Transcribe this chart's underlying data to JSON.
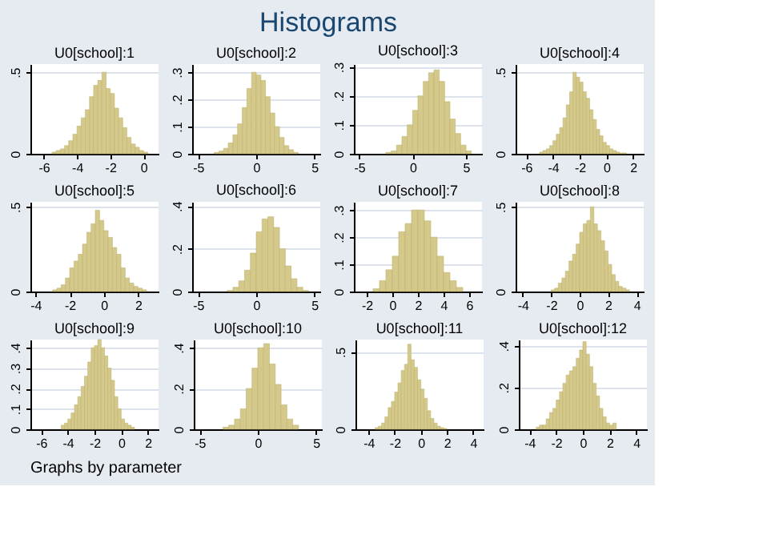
{
  "chart_data": [
    {
      "type": "other",
      "title": "Histograms",
      "annotations": [
        "Graphs by parameter"
      ]
    },
    {
      "type": "histogram",
      "title": "U0[school]:1",
      "color": "#d4c98a",
      "grid": "y",
      "xlim": [
        -6.8,
        0.9
      ],
      "xticks": [
        -6,
        -4,
        -2,
        0
      ],
      "ylim": [
        0,
        0.55
      ],
      "yticks": [
        0,
        {
          "value": 0.5,
          "label": ".5"
        }
      ],
      "bins": [
        -5.5,
        -5.25,
        -5,
        -4.75,
        -4.5,
        -4.25,
        -4,
        -3.75,
        -3.5,
        -3.25,
        -3,
        -2.75,
        -2.5,
        -2.25,
        -2,
        -1.75,
        -1.5,
        -1.25,
        -1,
        -0.75,
        -0.5,
        -0.25,
        0,
        0.25
      ],
      "values": [
        0.01,
        0.02,
        0.03,
        0.05,
        0.08,
        0.12,
        0.17,
        0.22,
        0.27,
        0.35,
        0.42,
        0.45,
        0.5,
        0.4,
        0.37,
        0.28,
        0.22,
        0.16,
        0.1,
        0.06,
        0.04,
        0.02,
        0.01
      ]
    },
    {
      "type": "histogram",
      "title": "U0[school]:2",
      "color": "#d4c98a",
      "grid": "y",
      "xlim": [
        -5.5,
        5.5
      ],
      "xticks": [
        -5,
        0,
        5
      ],
      "ylim": [
        0,
        0.33
      ],
      "yticks": [
        0,
        {
          "value": 0.1,
          "label": ".1"
        },
        {
          "value": 0.2,
          "label": ".2"
        },
        {
          "value": 0.3,
          "label": ".3"
        }
      ],
      "bins": [
        -3.6,
        -3.2,
        -2.8,
        -2.4,
        -2,
        -1.6,
        -1.2,
        -0.8,
        -0.4,
        0,
        0.4,
        0.8,
        1.2,
        1.6,
        2,
        2.4,
        2.8,
        3.2,
        3.6
      ],
      "values": [
        0.005,
        0.01,
        0.02,
        0.04,
        0.07,
        0.11,
        0.17,
        0.24,
        0.3,
        0.29,
        0.27,
        0.21,
        0.15,
        0.1,
        0.06,
        0.03,
        0.015,
        0.005
      ]
    },
    {
      "type": "histogram",
      "title": "U0[school]:3",
      "color": "#d4c98a",
      "grid": "y",
      "xlim": [
        -5.5,
        6.5
      ],
      "xticks": [
        -5,
        0,
        5
      ],
      "ylim": [
        0,
        0.31
      ],
      "yticks": [
        0,
        {
          "value": 0.1,
          "label": ".1"
        },
        {
          "value": 0.2,
          "label": ".2"
        },
        {
          "value": 0.3,
          "label": ".3"
        }
      ],
      "bins": [
        -2.5,
        -2,
        -1.5,
        -1,
        -0.5,
        0,
        0.5,
        1,
        1.5,
        2,
        2.5,
        3,
        3.5,
        4,
        4.5,
        5,
        5.5
      ],
      "values": [
        0.005,
        0.01,
        0.03,
        0.06,
        0.1,
        0.15,
        0.2,
        0.25,
        0.28,
        0.29,
        0.25,
        0.18,
        0.12,
        0.07,
        0.03,
        0.01
      ]
    },
    {
      "type": "histogram",
      "title": "U0[school]:4",
      "color": "#d4c98a",
      "grid": "y",
      "xlim": [
        -6.8,
        2.8
      ],
      "xticks": [
        -6,
        -4,
        -2,
        0,
        2
      ],
      "ylim": [
        0,
        0.55
      ],
      "yticks": [
        0,
        {
          "value": 0.5,
          "label": ".5"
        }
      ],
      "bins": [
        -5,
        -4.75,
        -4.5,
        -4.25,
        -4,
        -3.75,
        -3.5,
        -3.25,
        -3,
        -2.75,
        -2.5,
        -2.25,
        -2,
        -1.75,
        -1.5,
        -1.25,
        -1,
        -0.75,
        -0.5,
        -0.25,
        0,
        0.25,
        0.5,
        0.75,
        1,
        1.25,
        1.5
      ],
      "values": [
        0.01,
        0.02,
        0.03,
        0.05,
        0.08,
        0.12,
        0.16,
        0.22,
        0.3,
        0.38,
        0.5,
        0.47,
        0.44,
        0.38,
        0.34,
        0.27,
        0.21,
        0.15,
        0.11,
        0.07,
        0.05,
        0.03,
        0.02,
        0.01,
        0.005,
        0.005
      ]
    },
    {
      "type": "histogram",
      "title": "U0[school]:5",
      "color": "#d4c98a",
      "grid": "y",
      "xlim": [
        -4.3,
        3.2
      ],
      "xticks": [
        -4,
        -2,
        0,
        2
      ],
      "ylim": [
        0,
        0.53
      ],
      "yticks": [
        0,
        {
          "value": 0.5,
          "label": ".5"
        }
      ],
      "bins": [
        -3,
        -2.75,
        -2.5,
        -2.25,
        -2,
        -1.75,
        -1.5,
        -1.25,
        -1,
        -0.75,
        -0.5,
        -0.25,
        0,
        0.25,
        0.5,
        0.75,
        1,
        1.25,
        1.5,
        1.75,
        2,
        2.25,
        2.5
      ],
      "values": [
        0.01,
        0.02,
        0.04,
        0.08,
        0.14,
        0.18,
        0.22,
        0.28,
        0.35,
        0.4,
        0.48,
        0.42,
        0.36,
        0.32,
        0.26,
        0.22,
        0.14,
        0.08,
        0.05,
        0.03,
        0.02,
        0.01
      ]
    },
    {
      "type": "histogram",
      "title": "U0[school]:6",
      "color": "#d4c98a",
      "grid": "y",
      "xlim": [
        -5.5,
        5.5
      ],
      "xticks": [
        -5,
        0,
        5
      ],
      "ylim": [
        0,
        0.42
      ],
      "yticks": [
        0,
        {
          "value": 0.2,
          "label": ".2"
        },
        {
          "value": 0.4,
          "label": ".4"
        }
      ],
      "bins": [
        -2.5,
        -2,
        -1.5,
        -1,
        -0.5,
        0,
        0.5,
        1,
        1.5,
        2,
        2.5,
        3,
        3.5,
        4,
        4.5
      ],
      "values": [
        0.005,
        0.02,
        0.05,
        0.1,
        0.18,
        0.28,
        0.34,
        0.35,
        0.3,
        0.2,
        0.12,
        0.06,
        0.02,
        0.005
      ]
    },
    {
      "type": "histogram",
      "title": "U0[school]:7",
      "color": "#d4c98a",
      "grid": "y",
      "xlim": [
        -3,
        7
      ],
      "xticks": [
        -2,
        0,
        2,
        4,
        6
      ],
      "ylim": [
        0,
        0.33
      ],
      "yticks": [
        0,
        {
          "value": 0.1,
          "label": ".1"
        },
        {
          "value": 0.2,
          "label": ".2"
        },
        {
          "value": 0.3,
          "label": ".3"
        }
      ],
      "bins": [
        -1.5,
        -1,
        -0.5,
        0,
        0.5,
        1,
        1.5,
        2,
        2.5,
        3,
        3.5,
        4,
        4.5,
        5,
        5.5
      ],
      "values": [
        0.01,
        0.04,
        0.08,
        0.13,
        0.22,
        0.25,
        0.3,
        0.3,
        0.26,
        0.2,
        0.13,
        0.07,
        0.04,
        0.015
      ]
    },
    {
      "type": "histogram",
      "title": "U0[school]:8",
      "color": "#d4c98a",
      "grid": "y",
      "xlim": [
        -4.5,
        4.5
      ],
      "xticks": [
        -4,
        -2,
        0,
        2,
        4
      ],
      "ylim": [
        0,
        0.53
      ],
      "yticks": [
        0,
        {
          "value": 0.5,
          "label": ".5"
        }
      ],
      "bins": [
        -2,
        -1.75,
        -1.5,
        -1.25,
        -1,
        -0.75,
        -0.5,
        -0.25,
        0,
        0.25,
        0.5,
        0.75,
        1,
        1.25,
        1.5,
        1.75,
        2,
        2.25,
        2.5,
        2.75,
        3,
        3.25,
        3.5
      ],
      "values": [
        0.01,
        0.02,
        0.05,
        0.08,
        0.12,
        0.18,
        0.22,
        0.28,
        0.35,
        0.4,
        0.42,
        0.5,
        0.4,
        0.36,
        0.3,
        0.24,
        0.16,
        0.1,
        0.06,
        0.03,
        0.02,
        0.01
      ]
    },
    {
      "type": "histogram",
      "title": "U0[school]:9",
      "color": "#d4c98a",
      "grid": "y",
      "xlim": [
        -6.8,
        2.8
      ],
      "xticks": [
        -6,
        -4,
        -2,
        0,
        2
      ],
      "ylim": [
        0,
        0.44
      ],
      "yticks": [
        0,
        {
          "value": 0.1,
          "label": ".1"
        },
        {
          "value": 0.2,
          "label": ".2"
        },
        {
          "value": 0.3,
          "label": ".3"
        },
        {
          "value": 0.4,
          "label": ".4"
        }
      ],
      "bins": [
        -4.5,
        -4.25,
        -4,
        -3.75,
        -3.5,
        -3.25,
        -3,
        -2.75,
        -2.5,
        -2.25,
        -2,
        -1.75,
        -1.5,
        -1.25,
        -1,
        -0.75,
        -0.5,
        -0.25,
        0,
        0.25,
        0.5,
        0.75,
        1
      ],
      "values": [
        0.02,
        0.03,
        0.05,
        0.08,
        0.12,
        0.16,
        0.21,
        0.26,
        0.33,
        0.4,
        0.41,
        0.44,
        0.4,
        0.36,
        0.3,
        0.24,
        0.16,
        0.1,
        0.05,
        0.03,
        0.02,
        0.01
      ]
    },
    {
      "type": "histogram",
      "title": "U0[school]:10",
      "color": "#d4c98a",
      "grid": "y",
      "xlim": [
        -5.5,
        5.5
      ],
      "xticks": [
        -5,
        0,
        5
      ],
      "ylim": [
        0,
        0.44
      ],
      "yticks": [
        0,
        {
          "value": 0.2,
          "label": ".2"
        },
        {
          "value": 0.4,
          "label": ".4"
        }
      ],
      "bins": [
        -3,
        -2.5,
        -2,
        -1.5,
        -1,
        -0.5,
        0,
        0.5,
        1,
        1.5,
        2,
        2.5,
        3,
        3.5
      ],
      "values": [
        0.01,
        0.02,
        0.05,
        0.1,
        0.2,
        0.3,
        0.4,
        0.42,
        0.32,
        0.22,
        0.12,
        0.05,
        0.02
      ]
    },
    {
      "type": "histogram",
      "title": "U0[school]:11",
      "color": "#d4c98a",
      "grid": "y",
      "xlim": [
        -5,
        4.8
      ],
      "xticks": [
        -4,
        -2,
        0,
        2,
        4
      ],
      "ylim": [
        0,
        0.58
      ],
      "yticks": [
        0,
        {
          "value": 0.5,
          "label": ".5"
        }
      ],
      "bins": [
        -3.5,
        -3.25,
        -3,
        -2.75,
        -2.5,
        -2.25,
        -2,
        -1.75,
        -1.5,
        -1.25,
        -1,
        -0.75,
        -0.5,
        -0.25,
        0,
        0.25,
        0.5,
        0.75,
        1,
        1.25,
        1.5,
        1.75,
        2
      ],
      "values": [
        0.01,
        0.02,
        0.04,
        0.08,
        0.14,
        0.18,
        0.24,
        0.3,
        0.38,
        0.42,
        0.55,
        0.45,
        0.4,
        0.32,
        0.26,
        0.2,
        0.12,
        0.07,
        0.04,
        0.02,
        0.01,
        0.005
      ]
    },
    {
      "type": "histogram",
      "title": "U0[school]:12",
      "color": "#d4c98a",
      "grid": "y",
      "xlim": [
        -4.8,
        4.8
      ],
      "xticks": [
        -4,
        -2,
        0,
        2,
        4
      ],
      "ylim": [
        0,
        0.43
      ],
      "yticks": [
        0,
        {
          "value": 0.2,
          "label": ".2"
        },
        {
          "value": 0.4,
          "label": ".4"
        }
      ],
      "bins": [
        -3.5,
        -3.25,
        -3,
        -2.75,
        -2.5,
        -2.25,
        -2,
        -1.75,
        -1.5,
        -1.25,
        -1,
        -0.75,
        -0.5,
        -0.25,
        0,
        0.25,
        0.5,
        0.75,
        1,
        1.25,
        1.5,
        1.75,
        2,
        2.25,
        2.5
      ],
      "values": [
        0.01,
        0.02,
        0.02,
        0.05,
        0.08,
        0.1,
        0.14,
        0.18,
        0.22,
        0.26,
        0.28,
        0.3,
        0.34,
        0.38,
        0.42,
        0.36,
        0.3,
        0.22,
        0.16,
        0.1,
        0.06,
        0.03,
        0.02,
        0.03
      ]
    }
  ]
}
